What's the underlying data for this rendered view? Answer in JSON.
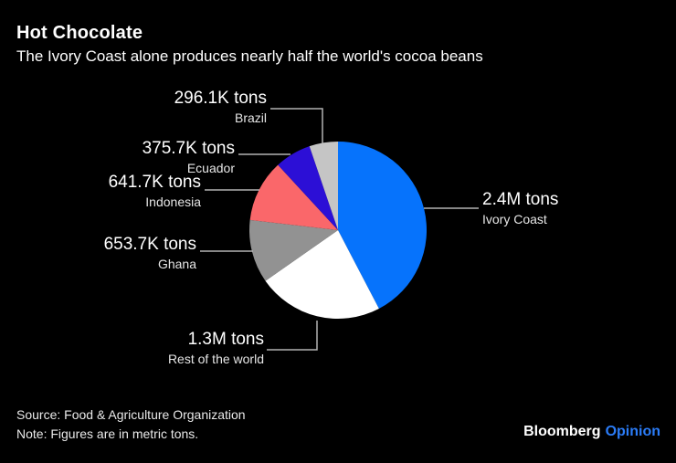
{
  "header": {
    "title": "Hot Chocolate",
    "subtitle": "The Ivory Coast alone produces nearly half the world's cocoa beans"
  },
  "chart_data": {
    "type": "pie",
    "title": "Hot Chocolate",
    "subtitle": "The Ivory Coast alone produces nearly half the world's cocoa beans",
    "unit": "metric tons",
    "label_style": "callout-with-leader-lines",
    "legend_position": "none",
    "start_angle_deg": 0,
    "direction": "clockwise",
    "slices": [
      {
        "label": "Ivory Coast",
        "value_display": "2.4M tons",
        "value_tons": 2400000,
        "percent": 42.3,
        "color": "#0673fc"
      },
      {
        "label": "Rest of the world",
        "value_display": "1.3M tons",
        "value_tons": 1300000,
        "percent": 22.9,
        "color": "#ffffff"
      },
      {
        "label": "Ghana",
        "value_display": "653.7K tons",
        "value_tons": 653700,
        "percent": 11.5,
        "color": "#929292"
      },
      {
        "label": "Indonesia",
        "value_display": "641.7K tons",
        "value_tons": 641700,
        "percent": 11.3,
        "color": "#fa676a"
      },
      {
        "label": "Ecuador",
        "value_display": "375.7K tons",
        "value_tons": 375700,
        "percent": 6.6,
        "color": "#2c0fd6"
      },
      {
        "label": "Brazil",
        "value_display": "296.1K tons",
        "value_tons": 296100,
        "percent": 5.2,
        "color": "#c5c5c5"
      }
    ]
  },
  "footer": {
    "source": "Source: Food & Agriculture Organization",
    "note": "Note: Figures are in metric tons.",
    "brand": "Bloomberg",
    "brand_suffix": "Opinion",
    "brand_suffix_color": "#2b7cf7"
  }
}
